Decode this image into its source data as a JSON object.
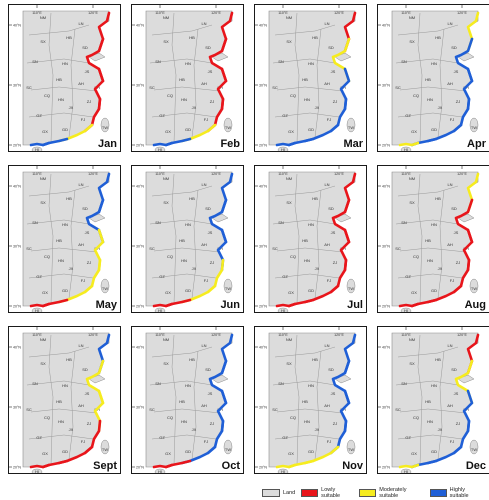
{
  "colors": {
    "land": "#dcdcdc",
    "low": "#e8151b",
    "moderate": "#f6ec1f",
    "high": "#1f5fd6",
    "border": "#9a9a9a",
    "sea": "#ffffff"
  },
  "ticks": {
    "top": [
      "110°E",
      "120°E"
    ],
    "left": [
      "40°N",
      "30°N",
      "20°N"
    ]
  },
  "province_labels": [
    "NM",
    "LN",
    "HB",
    "SX",
    "SD",
    "SN",
    "HN",
    "JS",
    "AH",
    "HB",
    "SH",
    "SC",
    "CQ",
    "HN",
    "ZJ",
    "JX",
    "GZ",
    "FJ",
    "GX",
    "GD",
    "TW",
    "HI"
  ],
  "months": [
    {
      "name": "Jan",
      "suitability": [
        "low",
        "low",
        "low",
        "low",
        "moderate",
        "high",
        "high"
      ]
    },
    {
      "name": "Feb",
      "suitability": [
        "low",
        "low",
        "low",
        "low",
        "moderate",
        "high",
        "high"
      ]
    },
    {
      "name": "Mar",
      "suitability": [
        "low",
        "moderate",
        "high",
        "high",
        "high",
        "high",
        "high"
      ]
    },
    {
      "name": "Apr",
      "suitability": [
        "moderate",
        "high",
        "high",
        "high",
        "high",
        "high",
        "moderate"
      ]
    },
    {
      "name": "May",
      "suitability": [
        "high",
        "high",
        "moderate",
        "moderate",
        "moderate",
        "low",
        "low"
      ]
    },
    {
      "name": "Jun",
      "suitability": [
        "high",
        "high",
        "high",
        "moderate",
        "moderate",
        "low",
        "low"
      ]
    },
    {
      "name": "Jul",
      "suitability": [
        "low",
        "low",
        "low",
        "low",
        "low",
        "low",
        "low"
      ]
    },
    {
      "name": "Aug",
      "suitability": [
        "moderate",
        "low",
        "low",
        "low",
        "low",
        "low",
        "low"
      ]
    },
    {
      "name": "Sept",
      "suitability": [
        "high",
        "moderate",
        "moderate",
        "low",
        "low",
        "low",
        "low"
      ]
    },
    {
      "name": "Oct",
      "suitability": [
        "high",
        "high",
        "high",
        "high",
        "high",
        "low",
        "low"
      ]
    },
    {
      "name": "Nov",
      "suitability": [
        "high",
        "high",
        "high",
        "high",
        "moderate",
        "moderate",
        "moderate"
      ]
    },
    {
      "name": "Dec",
      "suitability": [
        "low",
        "moderate",
        "high",
        "high",
        "high",
        "high",
        "moderate"
      ]
    }
  ],
  "legend": {
    "land": "Land",
    "low": "Lowly suitable",
    "moderate": "Moderately suitable",
    "high": "Highly suitable"
  }
}
